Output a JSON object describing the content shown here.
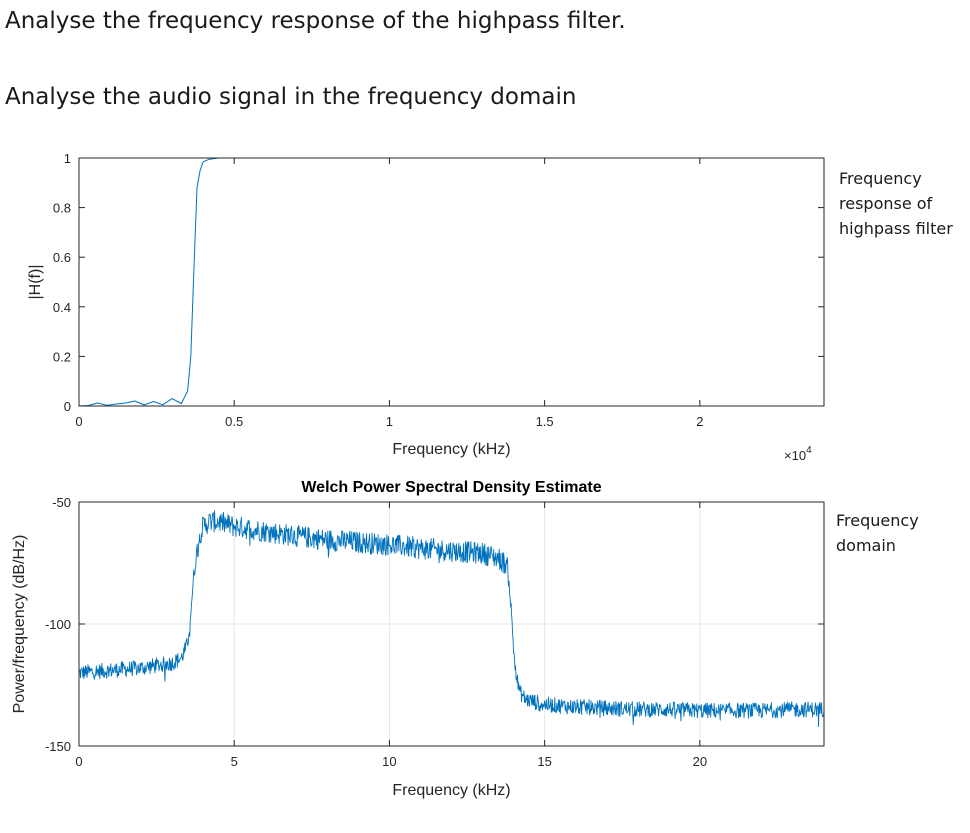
{
  "page": {
    "heading_filter": "Analyse the frequency response of the highpass filter.",
    "heading_audio": "Analyse the audio signal in the frequency domain",
    "note_filter": "Frequency response of highpass filter",
    "note_audio": "Frequency domain"
  },
  "colors": {
    "line": "#0072BD",
    "grid": "#e6e6e6",
    "axis": "#262626"
  },
  "chart_data": [
    {
      "type": "line",
      "title": "",
      "xlabel": "Frequency (kHz)",
      "ylabel": "|H(f)|",
      "xlim": [
        0,
        24000
      ],
      "ylim": [
        0,
        1
      ],
      "x_ticks": [
        0,
        5000,
        10000,
        15000,
        20000
      ],
      "x_tick_labels": [
        "0",
        "0.5",
        "1",
        "1.5",
        "2"
      ],
      "y_ticks": [
        0,
        0.2,
        0.4,
        0.6,
        0.8,
        1
      ],
      "y_tick_labels": [
        "0",
        "0.2",
        "0.4",
        "0.6",
        "0.8",
        "1"
      ],
      "exponent_label": "×10",
      "exponent_power": "4",
      "grid": false,
      "series": [
        {
          "x": [
            0,
            300,
            600,
            900,
            1200,
            1500,
            1800,
            2100,
            2400,
            2700,
            3000,
            3300,
            3500,
            3600,
            3700,
            3800,
            3900,
            4000,
            4200,
            4500,
            5000,
            6000,
            8000,
            10000,
            12000,
            14000,
            16000,
            18000,
            20000,
            22000,
            24000
          ],
          "y": [
            0.0,
            0.002,
            0.012,
            0.003,
            0.008,
            0.012,
            0.02,
            0.004,
            0.018,
            0.005,
            0.03,
            0.01,
            0.06,
            0.2,
            0.55,
            0.88,
            0.95,
            0.985,
            0.995,
            1.0,
            1.0,
            1.0,
            1.0,
            1.0,
            1.0,
            1.0,
            1.0,
            1.0,
            1.0,
            1.0,
            1.0
          ]
        }
      ]
    },
    {
      "type": "line",
      "title": "Welch Power Spectral Density Estimate",
      "xlabel": "Frequency (kHz)",
      "ylabel": "Power/frequency (dB/Hz)",
      "xlim": [
        0,
        24
      ],
      "ylim": [
        -150,
        -50
      ],
      "x_ticks": [
        0,
        5,
        10,
        15,
        20
      ],
      "x_tick_labels": [
        "0",
        "5",
        "10",
        "15",
        "20"
      ],
      "y_ticks": [
        -150,
        -100,
        -50
      ],
      "y_tick_labels": [
        "-150",
        "-100",
        "-50"
      ],
      "grid": true,
      "series": [
        {
          "x": [
            0,
            0.5,
            1,
            1.5,
            2,
            2.5,
            3,
            3.3,
            3.5,
            3.6,
            3.7,
            3.8,
            3.9,
            4.0,
            4.2,
            4.5,
            5,
            6,
            7,
            8,
            9,
            10,
            11,
            12,
            13,
            13.5,
            13.8,
            13.9,
            14.0,
            14.1,
            14.2,
            14.4,
            14.7,
            15,
            16,
            17,
            18,
            19,
            20,
            21,
            22,
            23,
            24
          ],
          "y": [
            -120,
            -119.5,
            -119,
            -118.5,
            -118,
            -117,
            -116,
            -114,
            -108,
            -95,
            -80,
            -70,
            -63,
            -60,
            -58,
            -58,
            -60,
            -62,
            -64,
            -65.5,
            -66.5,
            -67.5,
            -69,
            -70,
            -71,
            -73,
            -76,
            -90,
            -110,
            -122,
            -128,
            -131,
            -132,
            -133,
            -134,
            -134.5,
            -135,
            -135,
            -135.5,
            -135.5,
            -135.5,
            -135,
            -135
          ]
        }
      ]
    }
  ]
}
